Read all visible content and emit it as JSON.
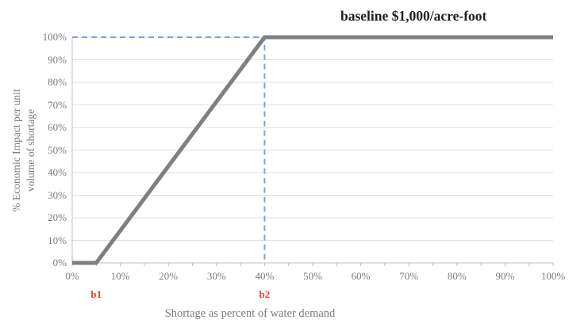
{
  "chart_data": {
    "type": "line",
    "title": "baseline $1,000/acre-foot",
    "xlabel": "Shortage as percent of water demand",
    "ylabel": "% Economic Impact per unit volume of shortage",
    "ylabel_lines": [
      "% Economic Impact per unit",
      "volume of shortage"
    ],
    "xlim": [
      0,
      100
    ],
    "ylim": [
      0,
      100
    ],
    "x_tick_labels": [
      "0%",
      "10%",
      "20%",
      "30%",
      "40%",
      "50%",
      "60%",
      "70%",
      "80%",
      "90%",
      "100%"
    ],
    "y_tick_labels": [
      "0%",
      "10%",
      "20%",
      "30%",
      "40%",
      "50%",
      "60%",
      "70%",
      "80%",
      "90%",
      "100%"
    ],
    "x_minor_tick_step": 5,
    "grid": "horizontal",
    "legend": "none",
    "series": [
      {
        "name": "economic impact curve",
        "color": "#7F7F7F",
        "width": 5,
        "points": [
          [
            0,
            0
          ],
          [
            5,
            0
          ],
          [
            40,
            100
          ],
          [
            100,
            100
          ]
        ]
      }
    ],
    "reference_lines": [
      {
        "name": "dashed guide to peak at b2",
        "color": "#7EA3CC",
        "style": "dashed",
        "width": 2,
        "points": [
          [
            0,
            100
          ],
          [
            40,
            100
          ],
          [
            40,
            0
          ]
        ]
      }
    ],
    "annotations": [
      {
        "label": "b1",
        "x": 5,
        "color": "#E8491F"
      },
      {
        "label": "b2",
        "x": 40,
        "color": "#E8491F"
      }
    ],
    "colors": {
      "gridline": "#DEDEDE",
      "axis": "#BFBFBF",
      "tick_label": "#7C7C7C",
      "title": "#1F1F1F"
    }
  }
}
